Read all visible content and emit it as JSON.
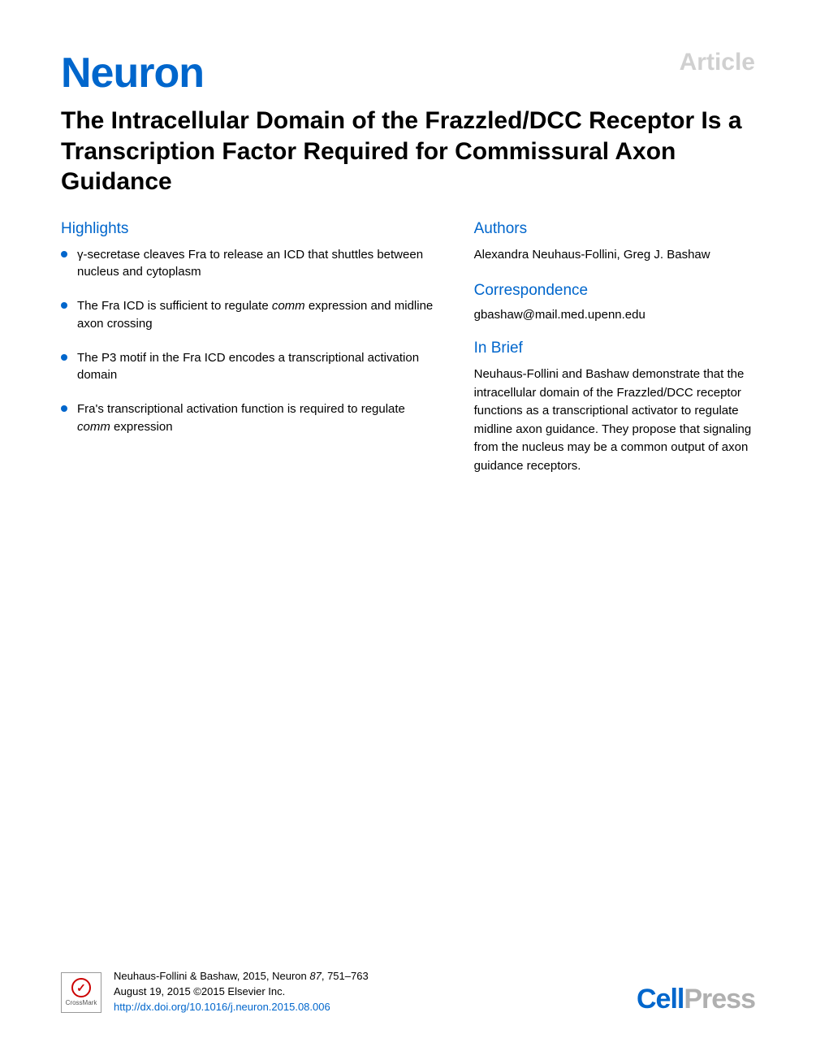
{
  "header": {
    "article_label": "Article",
    "journal_name": "Neuron",
    "title": "The Intracellular Domain of the Frazzled/DCC Receptor Is a Transcription Factor Required for Commissural Axon Guidance"
  },
  "highlights": {
    "heading": "Highlights",
    "items": [
      {
        "prefix": "γ-secretase cleaves Fra to release an ICD that shuttles between nucleus and cytoplasm",
        "italic": ""
      },
      {
        "prefix": "The Fra ICD is sufficient to regulate ",
        "italic": "comm",
        "suffix": " expression and midline axon crossing"
      },
      {
        "prefix": "The P3 motif in the Fra ICD encodes a transcriptional activation domain",
        "italic": ""
      },
      {
        "prefix": "Fra's transcriptional activation function is required to regulate ",
        "italic": "comm",
        "suffix": " expression"
      }
    ]
  },
  "authors": {
    "heading": "Authors",
    "text": "Alexandra Neuhaus-Follini, Greg J. Bashaw"
  },
  "correspondence": {
    "heading": "Correspondence",
    "email": "gbashaw@mail.med.upenn.edu"
  },
  "inbrief": {
    "heading": "In Brief",
    "text": "Neuhaus-Follini and Bashaw demonstrate that the intracellular domain of the Frazzled/DCC receptor functions as a transcriptional activator to regulate midline axon guidance. They propose that signaling from the nucleus may be a common output of axon guidance receptors."
  },
  "footer": {
    "crossmark_label": "CrossMark",
    "citation_line1": "Neuhaus-Follini & Bashaw, 2015, Neuron ",
    "citation_vol": "87",
    "citation_pages": ", 751–763",
    "citation_line2": "August 19, 2015 ©2015 Elsevier Inc.",
    "doi": "http://dx.doi.org/10.1016/j.neuron.2015.08.006",
    "cellpress_cell": "Cell",
    "cellpress_press": "Press"
  },
  "colors": {
    "primary_blue": "#0066cc",
    "light_gray": "#d0d0d0",
    "logo_gray": "#b0b0b0",
    "text": "#000000",
    "background": "#ffffff"
  },
  "typography": {
    "title_fontsize": 30,
    "heading_fontsize": 19,
    "body_fontsize": 15,
    "citation_fontsize": 13,
    "journal_logo_fontsize": 52
  }
}
